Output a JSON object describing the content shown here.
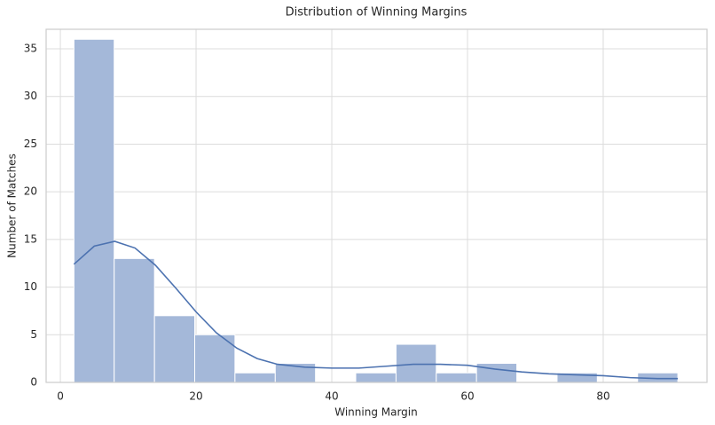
{
  "chart_data": {
    "type": "histogram",
    "title": "Distribution of Winning Margins",
    "x_label": "Winning Margin",
    "y_label": "Number of Matches",
    "bins": [
      2,
      7.93,
      13.87,
      19.8,
      25.73,
      31.67,
      37.6,
      43.53,
      49.47,
      55.4,
      61.33,
      67.27,
      73.2,
      79.13,
      85.07,
      91
    ],
    "values": [
      36,
      13,
      7,
      5,
      1,
      2,
      0,
      1,
      4,
      1,
      2,
      0,
      1,
      0,
      1
    ],
    "color": "#a4b8d9",
    "kde": {
      "color": "#4c72b0",
      "x": [
        2,
        5,
        8,
        11,
        14,
        17,
        20,
        23,
        26,
        29,
        32,
        36,
        40,
        44,
        48,
        52,
        56,
        60,
        64,
        68,
        72,
        76,
        80,
        84,
        88,
        91
      ],
      "values": [
        12.4,
        14.3,
        14.8,
        14.1,
        12.3,
        9.9,
        7.4,
        5.2,
        3.6,
        2.5,
        1.9,
        1.6,
        1.5,
        1.5,
        1.7,
        1.9,
        1.9,
        1.8,
        1.4,
        1.1,
        0.9,
        0.8,
        0.7,
        0.5,
        0.4,
        0.4
      ]
    },
    "xlim": [
      -2.1,
      95.3
    ],
    "ylim": [
      0,
      37.05
    ],
    "xticks": [
      0,
      20,
      40,
      60,
      80
    ],
    "yticks": [
      0,
      5,
      10,
      15,
      20,
      25,
      30,
      35
    ],
    "grid": true
  }
}
